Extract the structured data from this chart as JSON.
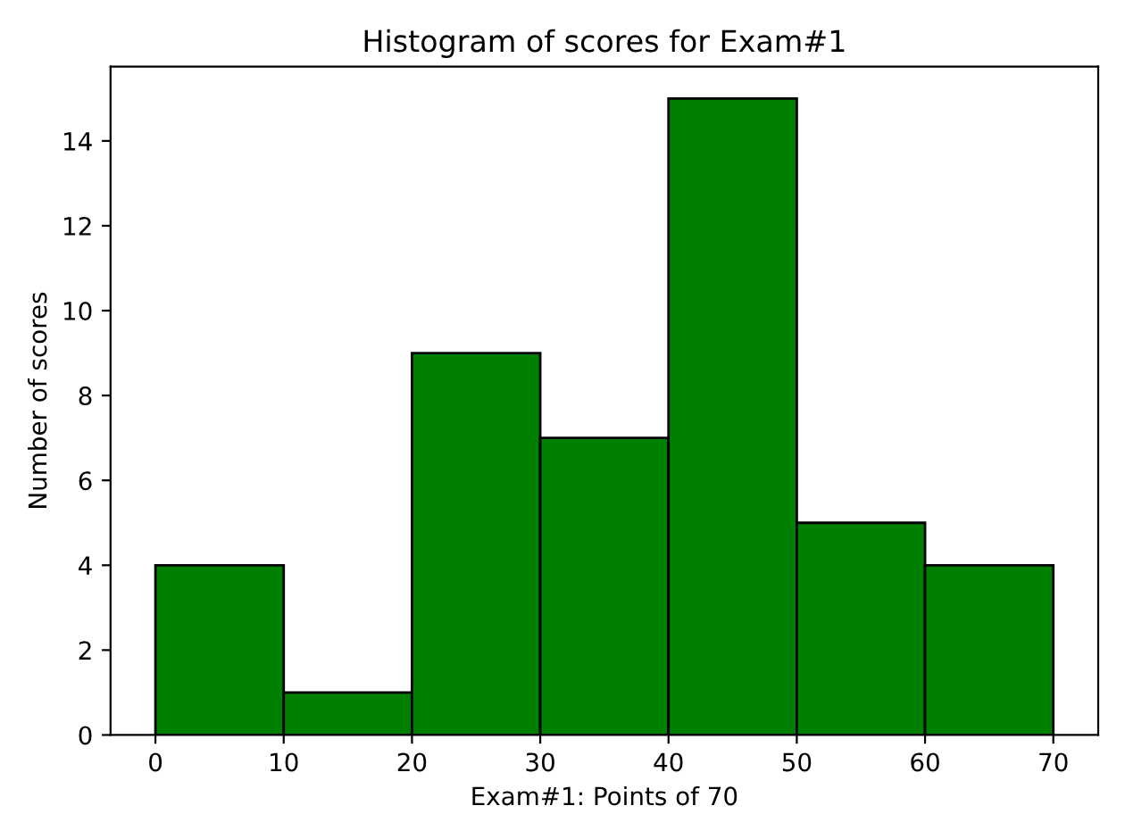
{
  "chart_data": {
    "type": "histogram",
    "title": "Histogram of scores for Exam#1",
    "xlabel": "Exam#1: Points of 70",
    "ylabel": "Number of scores",
    "bins": [
      0,
      10,
      20,
      30,
      40,
      50,
      60,
      70
    ],
    "values": [
      4,
      1,
      9,
      7,
      15,
      5,
      4
    ],
    "color": "#008000",
    "xlim": [
      -3.5,
      73.5
    ],
    "xticks": [
      0,
      10,
      20,
      30,
      40,
      50,
      60,
      70
    ],
    "ylim": [
      0,
      15.75
    ],
    "yticks": [
      0,
      2,
      4,
      6,
      8,
      10,
      12,
      14
    ],
    "grid": false
  }
}
